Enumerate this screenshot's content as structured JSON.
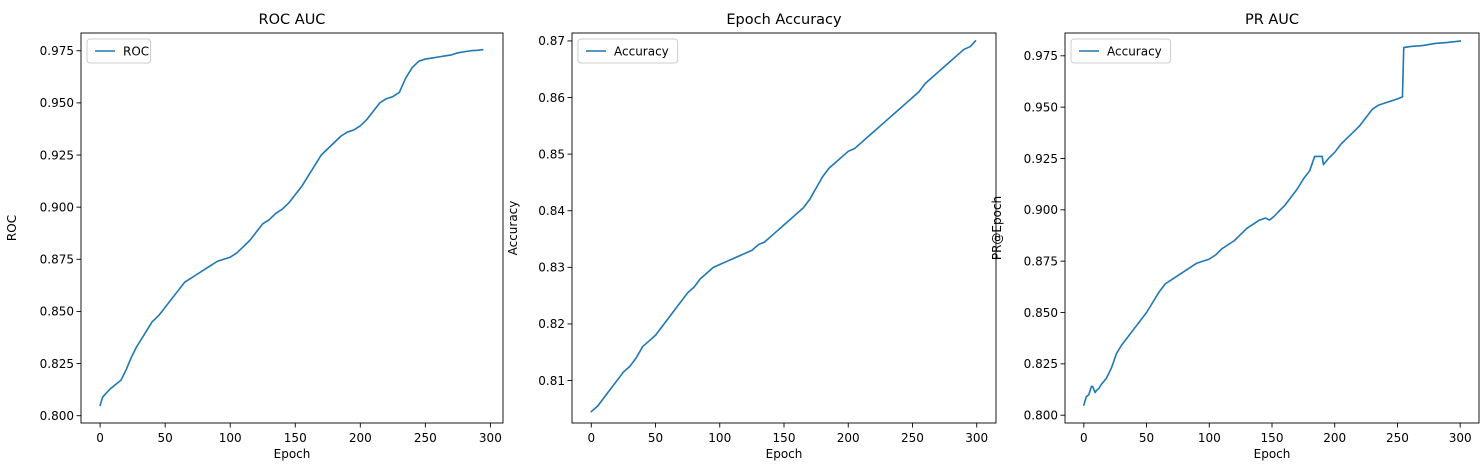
{
  "chart_data": [
    {
      "type": "line",
      "title": "ROC AUC",
      "xlabel": "Epoch",
      "ylabel": "ROC",
      "xlim": [
        -14.7,
        309.7
      ],
      "ylim": [
        0.7965,
        0.9835
      ],
      "xticks": [
        0,
        50,
        100,
        150,
        200,
        250,
        300
      ],
      "xtick_labels": [
        "0",
        "50",
        "100",
        "150",
        "200",
        "250",
        "300"
      ],
      "yticks": [
        0.8,
        0.825,
        0.85,
        0.875,
        0.9,
        0.925,
        0.95,
        0.975
      ],
      "ytick_labels": [
        "0.800",
        "0.825",
        "0.850",
        "0.875",
        "0.900",
        "0.925",
        "0.950",
        "0.975"
      ],
      "legend": "top-left",
      "grid": false,
      "series": [
        {
          "name": "ROC",
          "color": "#1f77b4",
          "x": [
            0,
            2,
            5,
            8,
            12,
            16,
            20,
            24,
            28,
            32,
            36,
            40,
            45,
            50,
            55,
            60,
            65,
            70,
            75,
            80,
            85,
            90,
            95,
            100,
            105,
            110,
            115,
            120,
            125,
            130,
            135,
            140,
            145,
            150,
            155,
            160,
            165,
            170,
            175,
            180,
            185,
            190,
            195,
            200,
            205,
            210,
            215,
            220,
            225,
            230,
            235,
            240,
            245,
            250,
            255,
            260,
            265,
            270,
            275,
            280,
            285,
            290,
            294
          ],
          "y": [
            0.805,
            0.809,
            0.811,
            0.813,
            0.815,
            0.817,
            0.822,
            0.828,
            0.833,
            0.837,
            0.841,
            0.845,
            0.848,
            0.852,
            0.856,
            0.86,
            0.864,
            0.866,
            0.868,
            0.87,
            0.872,
            0.874,
            0.875,
            0.876,
            0.878,
            0.881,
            0.884,
            0.888,
            0.892,
            0.894,
            0.897,
            0.899,
            0.902,
            0.906,
            0.91,
            0.915,
            0.92,
            0.925,
            0.928,
            0.931,
            0.934,
            0.936,
            0.937,
            0.939,
            0.942,
            0.946,
            0.95,
            0.952,
            0.953,
            0.955,
            0.962,
            0.967,
            0.97,
            0.971,
            0.9715,
            0.972,
            0.9725,
            0.973,
            0.974,
            0.9745,
            0.975,
            0.9752,
            0.9755
          ]
        }
      ]
    },
    {
      "type": "line",
      "title": "Epoch Accuracy",
      "xlabel": "Epoch",
      "ylabel": "Accuracy",
      "xlim": [
        -15,
        315
      ],
      "ylim": [
        0.8025,
        0.8714
      ],
      "xticks": [
        0,
        50,
        100,
        150,
        200,
        250,
        300
      ],
      "xtick_labels": [
        "0",
        "50",
        "100",
        "150",
        "200",
        "250",
        "300"
      ],
      "yticks": [
        0.81,
        0.82,
        0.83,
        0.84,
        0.85,
        0.86,
        0.87
      ],
      "ytick_labels": [
        "0.81",
        "0.82",
        "0.83",
        "0.84",
        "0.85",
        "0.86",
        "0.87"
      ],
      "legend": "top-left",
      "grid": false,
      "series": [
        {
          "name": "Accuracy",
          "color": "#1f77b4",
          "x": [
            0,
            5,
            10,
            15,
            20,
            25,
            30,
            35,
            40,
            45,
            50,
            55,
            60,
            65,
            70,
            75,
            80,
            85,
            90,
            95,
            100,
            105,
            110,
            115,
            120,
            125,
            130,
            135,
            140,
            145,
            150,
            155,
            160,
            165,
            170,
            175,
            180,
            185,
            190,
            195,
            200,
            205,
            210,
            215,
            220,
            225,
            230,
            235,
            240,
            245,
            250,
            255,
            260,
            265,
            270,
            275,
            280,
            285,
            290,
            295,
            299
          ],
          "y": [
            0.8045,
            0.8055,
            0.807,
            0.8085,
            0.81,
            0.8115,
            0.8125,
            0.814,
            0.816,
            0.817,
            0.818,
            0.8195,
            0.821,
            0.8225,
            0.824,
            0.8255,
            0.8265,
            0.828,
            0.829,
            0.83,
            0.8305,
            0.831,
            0.8315,
            0.832,
            0.8325,
            0.833,
            0.834,
            0.8345,
            0.8355,
            0.8365,
            0.8375,
            0.8385,
            0.8395,
            0.8405,
            0.842,
            0.844,
            0.846,
            0.8475,
            0.8485,
            0.8495,
            0.8505,
            0.851,
            0.852,
            0.853,
            0.854,
            0.855,
            0.856,
            0.857,
            0.858,
            0.859,
            0.86,
            0.861,
            0.8625,
            0.8635,
            0.8645,
            0.8655,
            0.8665,
            0.8675,
            0.8685,
            0.869,
            0.87
          ]
        }
      ]
    },
    {
      "type": "line",
      "title": "PR AUC",
      "xlabel": "Epoch",
      "ylabel": "PR@Epoch",
      "xlim": [
        -15,
        315
      ],
      "ylim": [
        0.7962,
        0.9861
      ],
      "xticks": [
        0,
        50,
        100,
        150,
        200,
        250,
        300
      ],
      "xtick_labels": [
        "0",
        "50",
        "100",
        "150",
        "200",
        "250",
        "300"
      ],
      "yticks": [
        0.8,
        0.825,
        0.85,
        0.875,
        0.9,
        0.925,
        0.95,
        0.975
      ],
      "ytick_labels": [
        "0.800",
        "0.825",
        "0.850",
        "0.875",
        "0.900",
        "0.925",
        "0.950",
        "0.975"
      ],
      "legend": "top-left",
      "grid": false,
      "series": [
        {
          "name": "Accuracy",
          "color": "#1f77b4",
          "x": [
            0,
            2,
            4,
            6,
            7,
            9,
            10,
            12,
            14,
            18,
            22,
            26,
            30,
            35,
            40,
            45,
            50,
            55,
            60,
            65,
            70,
            75,
            80,
            85,
            90,
            95,
            100,
            105,
            110,
            115,
            120,
            125,
            130,
            135,
            140,
            145,
            148,
            152,
            155,
            160,
            165,
            170,
            175,
            180,
            184,
            186,
            190,
            191,
            195,
            200,
            205,
            210,
            215,
            220,
            225,
            230,
            235,
            240,
            245,
            250,
            254,
            255,
            260,
            270,
            280,
            290,
            300
          ],
          "y": [
            0.805,
            0.809,
            0.81,
            0.814,
            0.814,
            0.811,
            0.812,
            0.813,
            0.815,
            0.818,
            0.823,
            0.83,
            0.834,
            0.838,
            0.842,
            0.846,
            0.85,
            0.855,
            0.86,
            0.864,
            0.866,
            0.868,
            0.87,
            0.872,
            0.874,
            0.875,
            0.876,
            0.878,
            0.881,
            0.883,
            0.885,
            0.888,
            0.891,
            0.893,
            0.895,
            0.896,
            0.895,
            0.897,
            0.899,
            0.902,
            0.906,
            0.91,
            0.915,
            0.919,
            0.926,
            0.926,
            0.926,
            0.922,
            0.925,
            0.928,
            0.932,
            0.935,
            0.938,
            0.941,
            0.945,
            0.949,
            0.951,
            0.952,
            0.953,
            0.954,
            0.955,
            0.979,
            0.9795,
            0.98,
            0.981,
            0.9815,
            0.9822
          ]
        }
      ]
    }
  ]
}
